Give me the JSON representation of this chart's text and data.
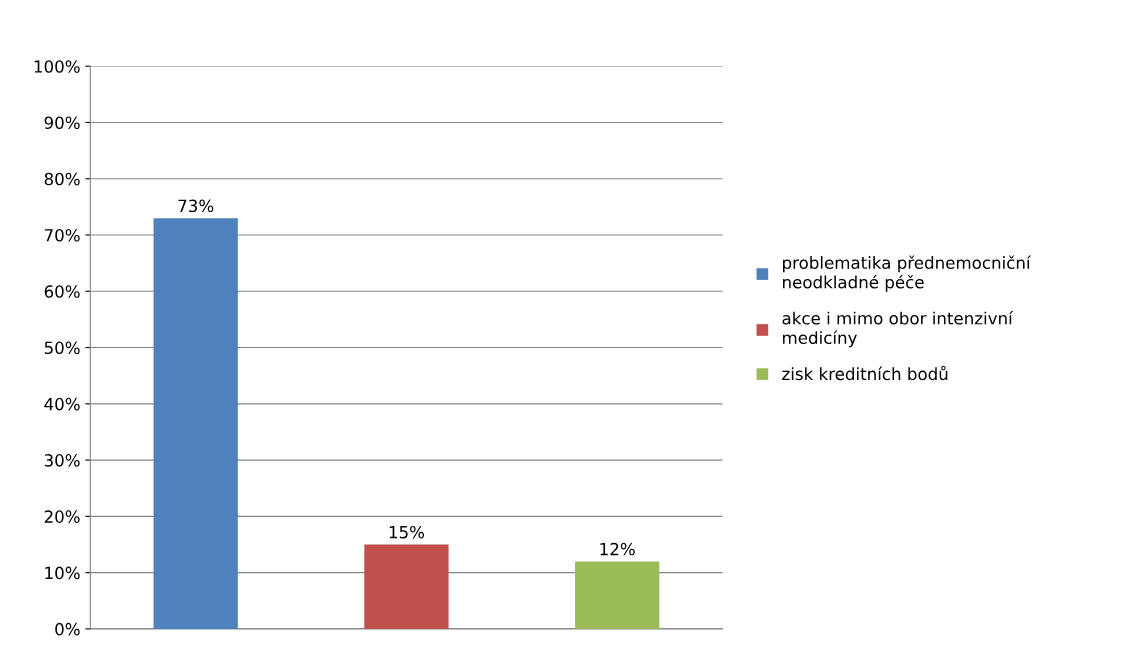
{
  "chart_data": {
    "type": "bar",
    "categories": [
      null,
      null,
      null
    ],
    "series": [
      {
        "name": "problematika přednemocniční neodkladné péče",
        "color": "#4f81bd",
        "values": [
          73,
          null,
          null
        ]
      },
      {
        "name": "akce i mimo obor intenzivní medicíny",
        "color": "#c0504d",
        "values": [
          null,
          15,
          null
        ]
      },
      {
        "name": "zisk kreditních bodů",
        "color": "#9bbb59",
        "values": [
          null,
          null,
          12
        ]
      }
    ],
    "ylim": [
      0,
      100
    ],
    "yticks": [
      {
        "value": 0,
        "label": "0%"
      },
      {
        "value": 10,
        "label": "10%"
      },
      {
        "value": 20,
        "label": "20%"
      },
      {
        "value": 30,
        "label": "30%"
      },
      {
        "value": 40,
        "label": "40%"
      },
      {
        "value": 50,
        "label": "50%"
      },
      {
        "value": 60,
        "label": "60%"
      },
      {
        "value": 70,
        "label": "70%"
      },
      {
        "value": 80,
        "label": "80%"
      },
      {
        "value": 90,
        "label": "90%"
      },
      {
        "value": 100,
        "label": "100%"
      }
    ],
    "value_labels": [
      "73%",
      "15%",
      "12%"
    ],
    "grid": "y",
    "legend": "right"
  }
}
